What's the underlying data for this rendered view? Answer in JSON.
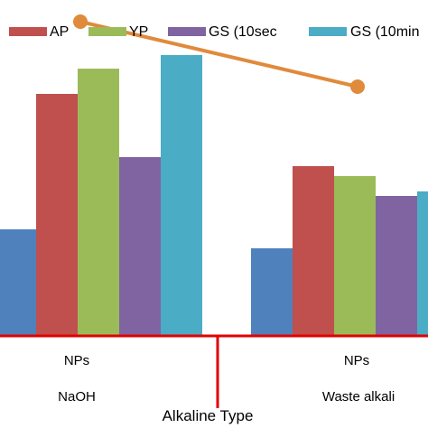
{
  "chart_data": {
    "type": "bar",
    "title": "",
    "xlabel": "Alkaline Type",
    "ylabel": "",
    "legend_position": "top",
    "grid": false,
    "ylim": [
      0,
      320
    ],
    "groups": [
      {
        "label": "NaOH",
        "sublabel": "NPs"
      },
      {
        "label": "Waste alkali",
        "sublabel": "NPs"
      }
    ],
    "series": [
      {
        "name": "",
        "color": "#4F81BD",
        "values": [
          118,
          97
        ]
      },
      {
        "name": "AP",
        "color": "#C0504D",
        "values": [
          268,
          188
        ]
      },
      {
        "name": "YP",
        "color": "#9BBB59",
        "values": [
          296,
          177
        ]
      },
      {
        "name": "GS (10sec",
        "color": "#8064A2",
        "values": [
          198,
          155
        ]
      },
      {
        "name": "GS (10min",
        "color": "#4BACC6",
        "values": [
          311,
          160
        ]
      }
    ],
    "line_series": {
      "name": "",
      "color": "#E08A3C",
      "values": [
        348,
        276
      ]
    }
  }
}
